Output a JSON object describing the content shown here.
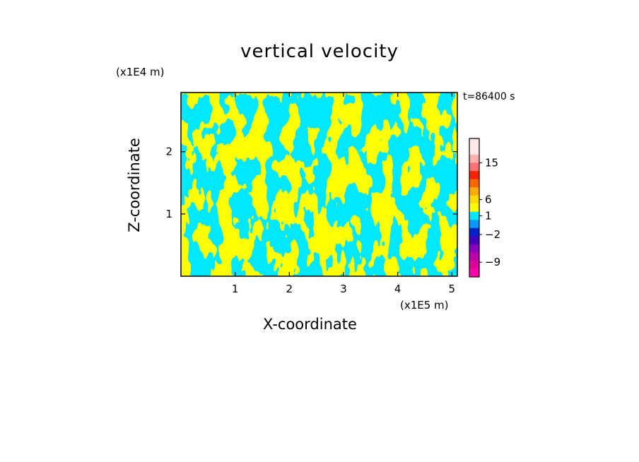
{
  "chart_data": {
    "type": "heatmap",
    "title": "vertical velocity",
    "xlabel": "X-coordinate",
    "ylabel": "Z-coordinate",
    "x_unit": "(x1E5 m)",
    "y_unit": "(x1E4 m)",
    "time_label": "t=86400 s",
    "xlim": [
      0,
      5.1
    ],
    "ylim": [
      0,
      2.95
    ],
    "x_ticks": [
      "1",
      "2",
      "3",
      "4",
      "5"
    ],
    "x_tick_values": [
      1,
      2,
      3,
      4,
      5
    ],
    "y_ticks": [
      "1",
      "2"
    ],
    "y_tick_values": [
      1,
      2
    ],
    "field_colors": {
      "positive": "#ffff00",
      "negative": "#00e8ff"
    },
    "colorbar": {
      "colors_top_to_bottom": [
        "#ffe8e8",
        "#ffe8e8",
        "#ffb0b0",
        "#ff7070",
        "#ff2200",
        "#ff6600",
        "#ffaa00",
        "#ffdd00",
        "#ffff00",
        "#00e8ff",
        "#0099ff",
        "#0022cc",
        "#4400bb",
        "#8800bb",
        "#bb00aa",
        "#dd0099",
        "#ff00aa"
      ],
      "labels": [
        "15",
        "6",
        "1",
        "−2",
        "−9"
      ],
      "label_levels": [
        15,
        6,
        1,
        -2,
        -9
      ]
    }
  }
}
